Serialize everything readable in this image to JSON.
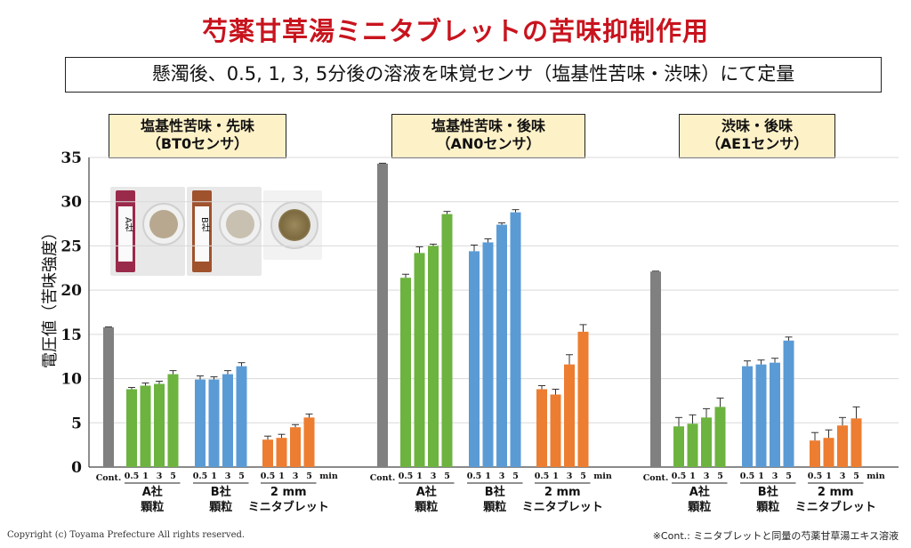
{
  "title": "芍薬甘草湯ミニタブレットの苦味抑制作用",
  "subtitle": "懸濁後、0.5, 1, 3, 5分後の溶液を味覚センサ（塩基性苦味・渋味）にて定量",
  "copyright": "Copyright (c) Toyama Prefecture All rights reserved.",
  "footnote": "※Cont.: ミニタブレットと同量の芍薬甘草湯エキス溶液",
  "photo_labels": [
    "A社",
    "B社"
  ],
  "colors": {
    "control": "#808080",
    "a": "#6db33f",
    "b": "#5b9bd5",
    "tablet": "#ed7d31",
    "title": "#c8141e"
  },
  "chart_data": {
    "type": "bar",
    "ylabel": "電圧値（苦味強度）",
    "ylim": [
      0,
      35
    ],
    "yticks": [
      0,
      5,
      10,
      15,
      20,
      25,
      30,
      35
    ],
    "time_labels": [
      "0.5",
      "1",
      "3",
      "5"
    ],
    "time_unit": "min",
    "control_label": "Cont.",
    "group_labels": [
      [
        "A社",
        "顆粒"
      ],
      [
        "B社",
        "顆粒"
      ],
      [
        "2 mm",
        "ミニタブレット"
      ]
    ],
    "panels": [
      {
        "title": [
          "塩基性苦味・先味",
          "（BT0センサ）"
        ],
        "control": 15.8,
        "groups": [
          {
            "values": [
              8.8,
              9.2,
              9.4,
              10.5
            ],
            "errors": [
              0.2,
              0.3,
              0.3,
              0.4
            ]
          },
          {
            "values": [
              9.9,
              9.9,
              10.5,
              11.4
            ],
            "errors": [
              0.4,
              0.3,
              0.4,
              0.4
            ]
          },
          {
            "values": [
              3.1,
              3.3,
              4.5,
              5.6
            ],
            "errors": [
              0.4,
              0.4,
              0.3,
              0.4
            ]
          }
        ]
      },
      {
        "title": [
          "塩基性苦味・後味",
          "（AN0センサ）"
        ],
        "control": 34.3,
        "groups": [
          {
            "values": [
              21.4,
              24.2,
              25.0,
              28.6
            ],
            "errors": [
              0.4,
              0.7,
              0.2,
              0.3
            ]
          },
          {
            "values": [
              24.4,
              25.4,
              27.4,
              28.8
            ],
            "errors": [
              0.7,
              0.4,
              0.2,
              0.3
            ]
          },
          {
            "values": [
              8.8,
              8.2,
              11.6,
              15.3
            ],
            "errors": [
              0.4,
              0.6,
              1.1,
              0.8
            ]
          }
        ]
      },
      {
        "title": [
          "渋味・後味",
          "（AE1センサ）"
        ],
        "control": 22.1,
        "groups": [
          {
            "values": [
              4.6,
              4.9,
              5.6,
              6.8
            ],
            "errors": [
              1.0,
              1.0,
              1.0,
              1.0
            ]
          },
          {
            "values": [
              11.4,
              11.6,
              11.8,
              14.3
            ],
            "errors": [
              0.6,
              0.5,
              0.5,
              0.4
            ]
          },
          {
            "values": [
              3.0,
              3.3,
              4.7,
              5.5
            ],
            "errors": [
              0.9,
              0.9,
              0.9,
              1.3
            ]
          }
        ]
      }
    ]
  }
}
